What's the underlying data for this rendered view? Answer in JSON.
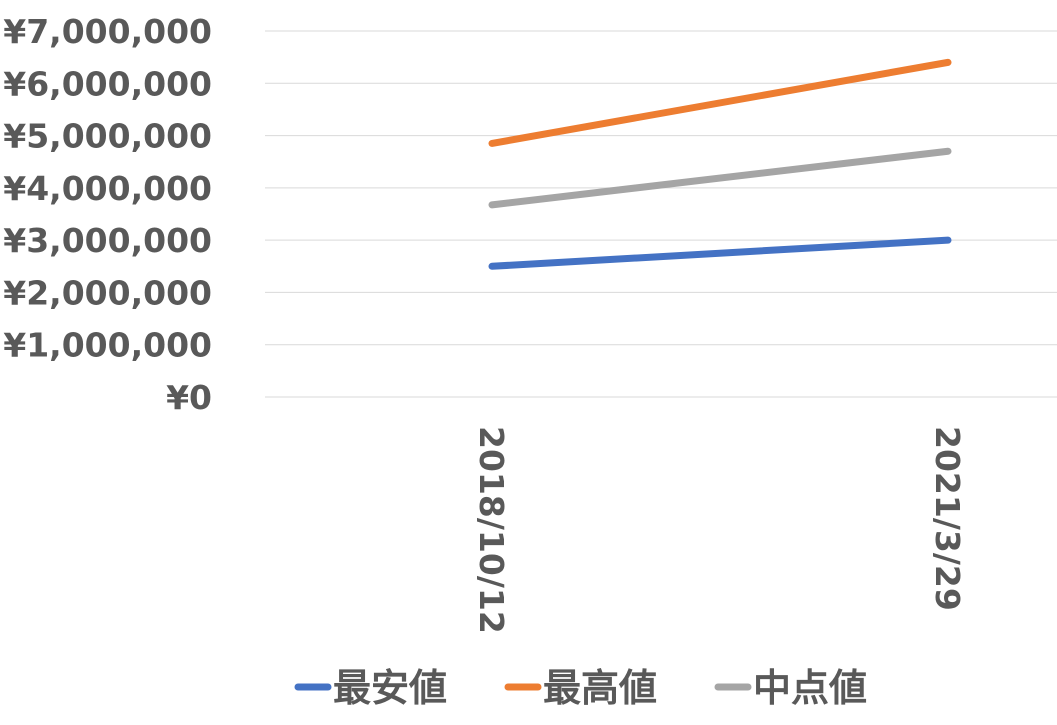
{
  "chart_data": {
    "type": "line",
    "title": "",
    "xlabel": "",
    "ylabel": "",
    "categories": [
      "2018/10/12",
      "2021/3/29"
    ],
    "y_tick_labels": [
      "¥0",
      "¥1,000,000",
      "¥2,000,000",
      "¥3,000,000",
      "¥4,000,000",
      "¥5,000,000",
      "¥6,000,000",
      "¥7,000,000"
    ],
    "y_ticks": [
      0,
      1000000,
      2000000,
      3000000,
      4000000,
      5000000,
      6000000,
      7000000
    ],
    "ylim": [
      0,
      7000000
    ],
    "grid": true,
    "legend_position": "bottom",
    "series": [
      {
        "name": "最安値",
        "values": [
          2500000,
          3000000
        ],
        "color": "#4472c4"
      },
      {
        "name": "最高値",
        "values": [
          4850000,
          6400000
        ],
        "color": "#ed7d31"
      },
      {
        "name": "中点値",
        "values": [
          3675000,
          4700000
        ],
        "color": "#a5a5a5"
      }
    ]
  }
}
